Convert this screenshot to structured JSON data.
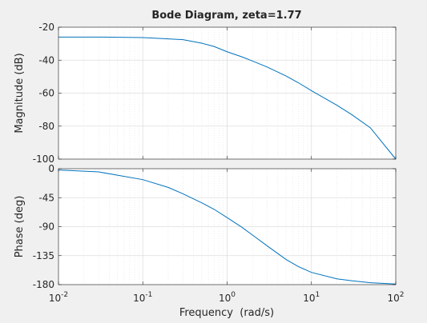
{
  "chart_data": {
    "type": "line",
    "title": "Bode Diagram, zeta=1.77",
    "xlabel": "Frequency  (rad/s)",
    "x_scale": "log",
    "x_ticks": [
      0.01,
      0.1,
      1,
      10,
      100
    ],
    "x_tick_labels": [
      {
        "base": "10",
        "exp": "-2"
      },
      {
        "base": "10",
        "exp": "-1"
      },
      {
        "base": "10",
        "exp": "0"
      },
      {
        "base": "10",
        "exp": "1"
      },
      {
        "base": "10",
        "exp": "2"
      }
    ],
    "xlim": [
      0.01,
      100
    ],
    "grid": true,
    "line_color": "#0072bd",
    "panels": [
      {
        "name": "magnitude",
        "ylabel": "Magnitude (dB)",
        "ylim": [
          -100,
          -20
        ],
        "y_ticks": [
          -20,
          -40,
          -60,
          -80,
          -100
        ],
        "y_tick_labels": [
          "-20",
          "-40",
          "-60",
          "-80",
          "-100"
        ],
        "x": [
          0.01,
          0.03,
          0.1,
          0.2,
          0.3,
          0.5,
          0.7,
          1,
          1.5,
          2,
          3,
          5,
          7,
          10,
          20,
          30,
          50,
          100
        ],
        "y": [
          -26,
          -26,
          -26.3,
          -27.1,
          -27.6,
          -29.7,
          -31.7,
          -34.9,
          -38.0,
          -40.5,
          -44.2,
          -49.6,
          -53.7,
          -58.5,
          -67.3,
          -73.0,
          -81.0,
          -100.0
        ]
      },
      {
        "name": "phase",
        "ylabel": "Phase (deg)",
        "ylim": [
          -180,
          0
        ],
        "y_ticks": [
          0,
          -45,
          -90,
          -135,
          -180
        ],
        "y_tick_labels": [
          "0",
          "-45",
          "-90",
          "-135",
          "-180"
        ],
        "x": [
          0.01,
          0.03,
          0.1,
          0.2,
          0.3,
          0.5,
          0.7,
          1,
          1.5,
          2,
          3,
          5,
          7,
          10,
          20,
          30,
          50,
          100
        ],
        "y": [
          -2,
          -5,
          -17,
          -29,
          -39,
          -53,
          -63,
          -76,
          -91,
          -103,
          -120,
          -141,
          -152,
          -161,
          -171,
          -174,
          -177,
          -179
        ]
      }
    ]
  }
}
